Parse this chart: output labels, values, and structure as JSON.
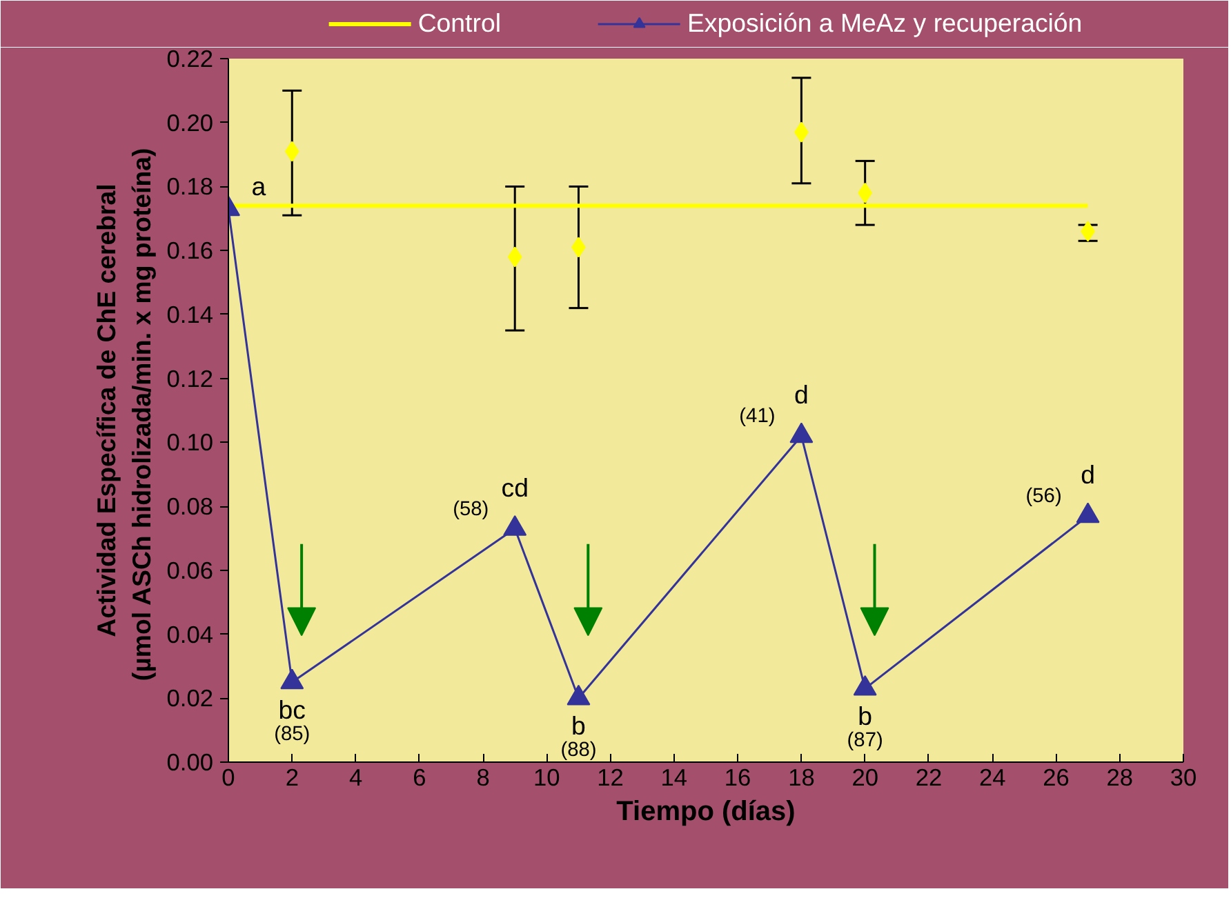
{
  "chart_data": {
    "type": "line",
    "xlabel": "Tiempo (días)",
    "ylabel": "Actividad Específica de ChE cerebral\n(µmol  ASCh hidrolizada/min. x mg proteína)",
    "xlim": [
      0,
      30
    ],
    "xticks": [
      0,
      2,
      4,
      6,
      8,
      10,
      12,
      14,
      16,
      18,
      20,
      22,
      24,
      26,
      28,
      30
    ],
    "ylim": [
      0,
      0.22
    ],
    "yticks": [
      {
        "value": 0,
        "label": "0.00"
      },
      {
        "value": 0.02,
        "label": "0.02"
      },
      {
        "value": 0.04,
        "label": "0.04"
      },
      {
        "value": 0.06,
        "label": "0.06"
      },
      {
        "value": 0.08,
        "label": "0.08"
      },
      {
        "value": 0.1,
        "label": "0.10"
      },
      {
        "value": 0.12,
        "label": "0.12"
      },
      {
        "value": 0.14,
        "label": "0.14"
      },
      {
        "value": 0.16,
        "label": "0.16"
      },
      {
        "value": 0.18,
        "label": "0.18"
      },
      {
        "value": 0.2,
        "label": "0.20"
      },
      {
        "value": 0.22,
        "label": "0.22"
      }
    ],
    "grid": false,
    "legend": "top",
    "series": [
      {
        "name": "Control",
        "color": "#ffff00",
        "marker": "none",
        "x": [
          0,
          27
        ],
        "values": [
          0.174,
          0.174
        ]
      },
      {
        "type": "scatter",
        "color": "#ffff00",
        "marker": "diamond",
        "x": [
          2,
          9,
          11,
          18,
          20,
          27
        ],
        "values": [
          0.191,
          0.158,
          0.161,
          0.197,
          0.178,
          0.166
        ],
        "errors": [
          [
            0.171,
            0.21
          ],
          [
            0.135,
            0.18
          ],
          [
            0.142,
            0.18
          ],
          [
            0.181,
            0.214
          ],
          [
            0.168,
            0.188
          ],
          [
            0.163,
            0.168
          ]
        ]
      },
      {
        "name": "Exposición a MeAz y recuperación",
        "color": "#333399",
        "marker": "triangle",
        "x": [
          0,
          2,
          9,
          11,
          18,
          20,
          27
        ],
        "values": [
          0.173,
          0.025,
          0.073,
          0.02,
          0.102,
          0.023,
          0.077
        ]
      }
    ],
    "annotations": [
      {
        "text": "a",
        "x": 0,
        "y": 0.174
      },
      {
        "text": "bc",
        "x": 2,
        "y": 0.025
      },
      {
        "text": "(85)",
        "x": 2,
        "y": 0.025
      },
      {
        "text": "cd",
        "x": 9,
        "y": 0.073
      },
      {
        "text": "(58)",
        "x": 9,
        "y": 0.073
      },
      {
        "text": "b",
        "x": 11,
        "y": 0.02
      },
      {
        "text": "(88)",
        "x": 11,
        "y": 0.02
      },
      {
        "text": "d",
        "x": 18,
        "y": 0.102
      },
      {
        "text": "(41)",
        "x": 18,
        "y": 0.102
      },
      {
        "text": "b",
        "x": 20,
        "y": 0.023
      },
      {
        "text": "(87)",
        "x": 20,
        "y": 0.023
      },
      {
        "text": "d",
        "x": 27,
        "y": 0.077
      },
      {
        "text": "(56)",
        "x": 27,
        "y": 0.077
      }
    ]
  }
}
